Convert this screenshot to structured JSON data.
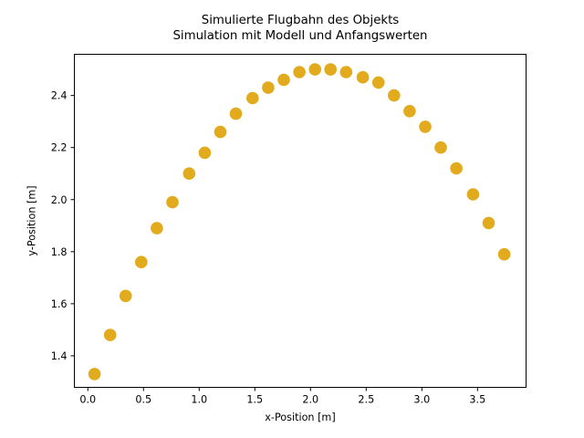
{
  "figure": {
    "background": "#ffffff"
  },
  "chart_data": {
    "type": "scatter",
    "title": "Simulierte Flugbahn des Objekts",
    "subtitle": "Simulation mit Modell und Anfangswerten",
    "xlabel": "x-Position [m]",
    "ylabel": "y-Position [m]",
    "x": [
      0.06,
      0.2,
      0.34,
      0.48,
      0.62,
      0.76,
      0.91,
      1.05,
      1.19,
      1.33,
      1.48,
      1.62,
      1.76,
      1.9,
      2.04,
      2.18,
      2.32,
      2.47,
      2.61,
      2.75,
      2.89,
      3.03,
      3.17,
      3.31,
      3.46,
      3.6,
      3.74
    ],
    "y": [
      1.33,
      1.48,
      1.63,
      1.76,
      1.89,
      1.99,
      2.1,
      2.18,
      2.26,
      2.33,
      2.39,
      2.43,
      2.46,
      2.49,
      2.5,
      2.5,
      2.49,
      2.47,
      2.45,
      2.4,
      2.34,
      2.28,
      2.2,
      2.12,
      2.02,
      1.91,
      1.79
    ],
    "xlim": [
      -0.125,
      3.94
    ],
    "ylim": [
      1.277,
      2.56
    ],
    "x_ticks": [
      0.0,
      0.5,
      1.0,
      1.5,
      2.0,
      2.5,
      3.0,
      3.5
    ],
    "x_tick_labels": [
      "0.0",
      "0.5",
      "1.0",
      "1.5",
      "2.0",
      "2.5",
      "3.0",
      "3.5"
    ],
    "y_ticks": [
      1.4,
      1.6,
      1.8,
      2.0,
      2.2,
      2.4
    ],
    "y_tick_labels": [
      "1.4",
      "1.6",
      "1.8",
      "2.0",
      "2.2",
      "2.4"
    ],
    "grid": false,
    "legend": null,
    "marker": {
      "shape": "circle",
      "color": "#e1ab1d",
      "radius_px": 6.8
    },
    "axes_color": "#000000"
  }
}
